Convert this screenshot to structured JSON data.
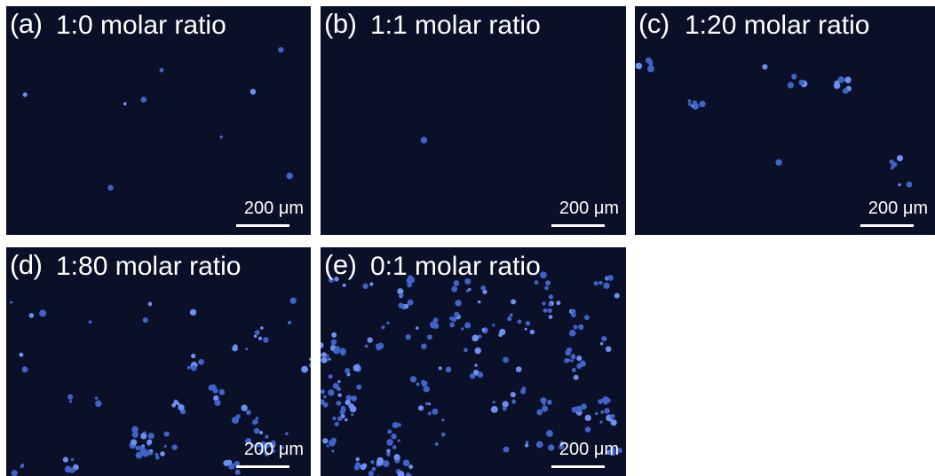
{
  "panels": [
    {
      "label": "(a)",
      "title": "1:0 molar ratio",
      "scale_bar": "200 μm"
    },
    {
      "label": "(b)",
      "title": "1:1 molar ratio",
      "scale_bar": "200 μm"
    },
    {
      "label": "(c)",
      "title": "1:20 molar ratio",
      "scale_bar": "200 μm"
    },
    {
      "label": "(d)",
      "title": "1:80 molar ratio",
      "scale_bar": "200 μm"
    },
    {
      "label": "(e)",
      "title": "0:1 molar ratio",
      "scale_bar": "200 μm"
    }
  ]
}
